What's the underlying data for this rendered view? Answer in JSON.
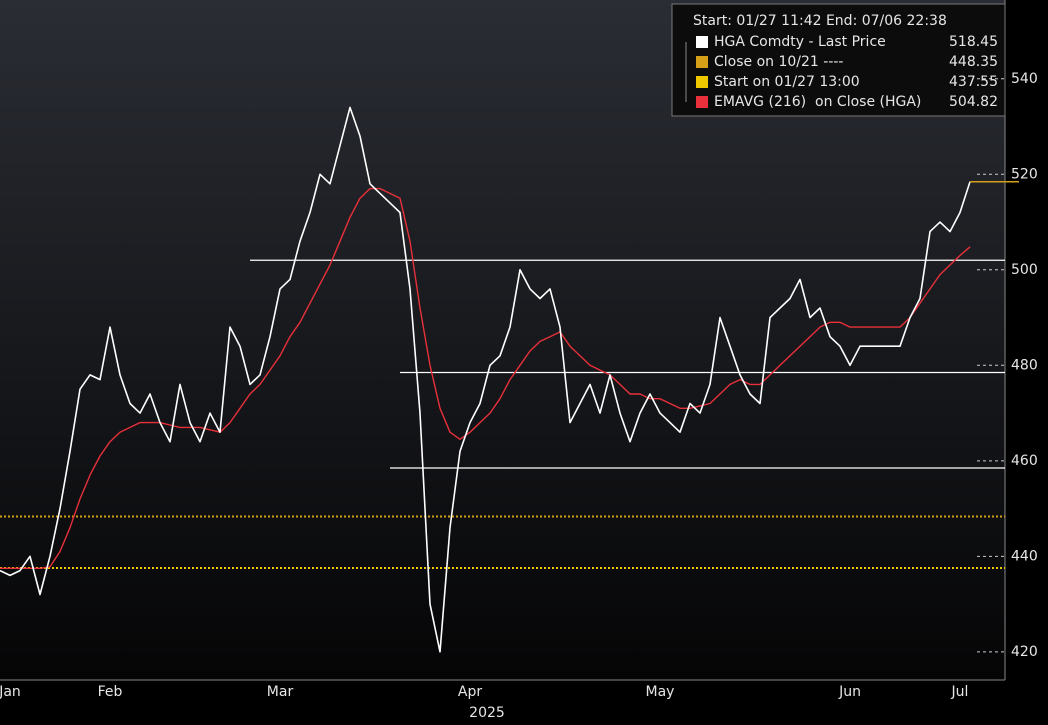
{
  "chart_data": {
    "type": "line",
    "x_label": "2025",
    "legend_header": "Start: 01/27 11:42 End: 07/06 22:38",
    "categories": [
      null,
      "Jan",
      null,
      null,
      null,
      null,
      null,
      null,
      null,
      null,
      null,
      "Feb",
      null,
      null,
      null,
      null,
      null,
      null,
      null,
      null,
      null,
      null,
      null,
      null,
      null,
      null,
      null,
      null,
      "Mar",
      null,
      null,
      null,
      null,
      null,
      null,
      null,
      null,
      null,
      null,
      null,
      null,
      null,
      null,
      null,
      null,
      null,
      null,
      "Apr",
      null,
      null,
      null,
      null,
      null,
      null,
      null,
      null,
      null,
      null,
      null,
      null,
      null,
      null,
      null,
      null,
      null,
      null,
      "May",
      null,
      null,
      null,
      null,
      null,
      null,
      null,
      null,
      null,
      null,
      null,
      null,
      null,
      null,
      null,
      null,
      null,
      null,
      "Jun",
      null,
      null,
      null,
      null,
      null,
      null,
      null,
      null,
      null,
      null,
      "Jul",
      null
    ],
    "series": [
      {
        "name": "HGA Comdty - Last Price",
        "color": "#ffffff",
        "values": [
          437,
          436,
          437,
          440,
          432,
          440,
          450,
          462,
          475,
          478,
          477,
          488,
          478,
          472,
          470,
          474,
          468,
          464,
          476,
          468,
          464,
          470,
          466,
          488,
          484,
          476,
          478,
          486,
          496,
          498,
          506,
          512,
          520,
          518,
          526,
          534,
          528,
          518,
          516,
          514,
          512,
          496,
          470,
          430,
          420,
          446,
          462,
          468,
          472,
          480,
          482,
          488,
          500,
          496,
          494,
          496,
          488,
          468,
          472,
          476,
          470,
          478,
          470,
          464,
          470,
          474,
          470,
          468,
          466,
          472,
          470,
          476,
          490,
          484,
          478,
          474,
          472,
          490,
          492,
          494,
          498,
          490,
          492,
          486,
          484,
          480,
          484,
          484,
          484,
          484,
          484,
          490,
          494,
          508,
          510,
          508,
          512,
          518.45
        ]
      },
      {
        "name": "EMAVG (216)  on Close (HGA)",
        "color": "#e8303a",
        "values": [
          437.5,
          437.5,
          437.5,
          437.5,
          437.5,
          437.8,
          441,
          446,
          452,
          457,
          461,
          464,
          466,
          467,
          468,
          468,
          468,
          467.5,
          467,
          467,
          467,
          466.5,
          466,
          468,
          471,
          474,
          476,
          479,
          482,
          486,
          489,
          493,
          497,
          501,
          506,
          511,
          515,
          517,
          517,
          516,
          515,
          506,
          492,
          480,
          471,
          466,
          464.5,
          466,
          468,
          470,
          473,
          477,
          480,
          483,
          485,
          486,
          487,
          484,
          482,
          480,
          479,
          478,
          476,
          474,
          474,
          473,
          473,
          472,
          471,
          471,
          471.5,
          472,
          474,
          476,
          477,
          476,
          476,
          478,
          480,
          482,
          484,
          486,
          488,
          489,
          489,
          488,
          488,
          488,
          488,
          488,
          488,
          490,
          493,
          496,
          499,
          501,
          503,
          504.82
        ]
      }
    ],
    "reference_lines": [
      {
        "name": "Close on 10/21 ----",
        "color": "#d4a017",
        "value": 448.35,
        "style": "dotted"
      },
      {
        "name": "Start on 01/27 13:00",
        "color": "#f0c800",
        "value": 437.55,
        "style": "dotted"
      }
    ],
    "level_lines": [
      {
        "value": 502,
        "color": "#ffffff",
        "start_index": 25
      },
      {
        "value": 478.5,
        "color": "#ffffff",
        "start_index": 40
      },
      {
        "value": 458.5,
        "color": "#ffffff",
        "start_index": 39
      }
    ],
    "ylim": [
      414.1,
      556.5
    ],
    "yticks": [
      420,
      440,
      460,
      480,
      500,
      520,
      540
    ],
    "grid": false
  }
}
